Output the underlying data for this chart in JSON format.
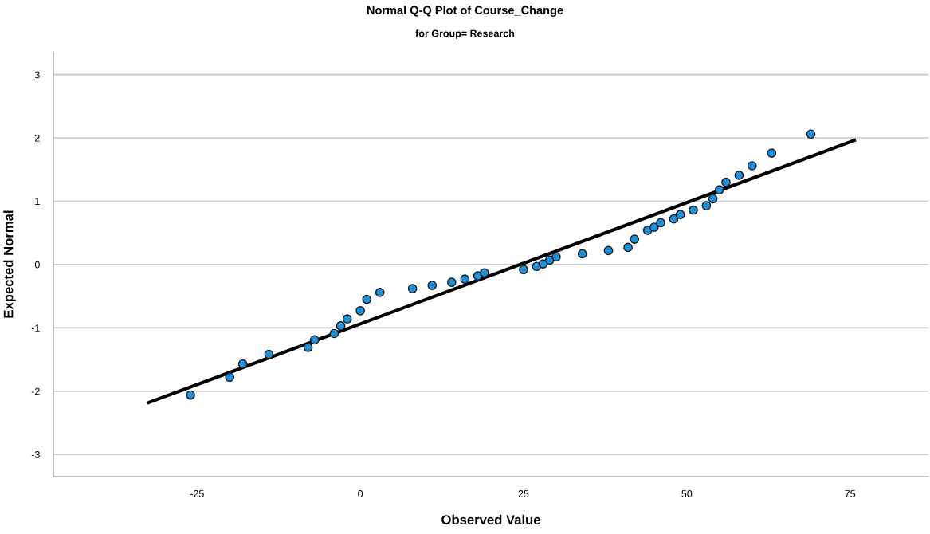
{
  "chart_data": {
    "type": "scatter",
    "title": "Normal Q-Q Plot of Course_Change",
    "subtitle": "for Group= Research",
    "xlabel": "Observed Value",
    "ylabel": "Expected Normal",
    "series": [
      {
        "color": "#1f8fdb",
        "marker": "circle",
        "x": [
          -26,
          -20,
          -18,
          -14,
          -8,
          -7,
          -4,
          -3,
          -2,
          0,
          1,
          3,
          8,
          11,
          14,
          16,
          18,
          19,
          25,
          27,
          28,
          29,
          30,
          34,
          38,
          41,
          42,
          44,
          45,
          46,
          48,
          49,
          51,
          53,
          54,
          55,
          56,
          58,
          60,
          63,
          69
        ],
        "values": [
          -2.06,
          -1.78,
          -1.57,
          -1.42,
          -1.31,
          -1.19,
          -1.09,
          -0.97,
          -0.86,
          -0.73,
          -0.55,
          -0.44,
          -0.38,
          -0.33,
          -0.28,
          -0.23,
          -0.18,
          -0.13,
          -0.08,
          -0.03,
          0.01,
          0.07,
          0.12,
          0.17,
          0.22,
          0.27,
          0.4,
          0.54,
          0.59,
          0.66,
          0.72,
          0.79,
          0.86,
          0.93,
          1.04,
          1.18,
          1.3,
          1.41,
          1.56,
          1.76,
          2.06
        ]
      },
      {
        "type": "line",
        "color": "#000000",
        "marker": "none",
        "x": [
          -32.7,
          75.9
        ],
        "values": [
          -2.19,
          1.97
        ]
      }
    ],
    "xlim": [
      -47,
      87
    ],
    "ylim": [
      -3.35,
      3.36
    ],
    "xticks": [
      -25,
      0,
      25,
      50,
      75
    ],
    "yticks": [
      -3,
      -2,
      -1,
      0,
      1,
      2,
      3
    ],
    "grid": "y",
    "legend": false
  }
}
